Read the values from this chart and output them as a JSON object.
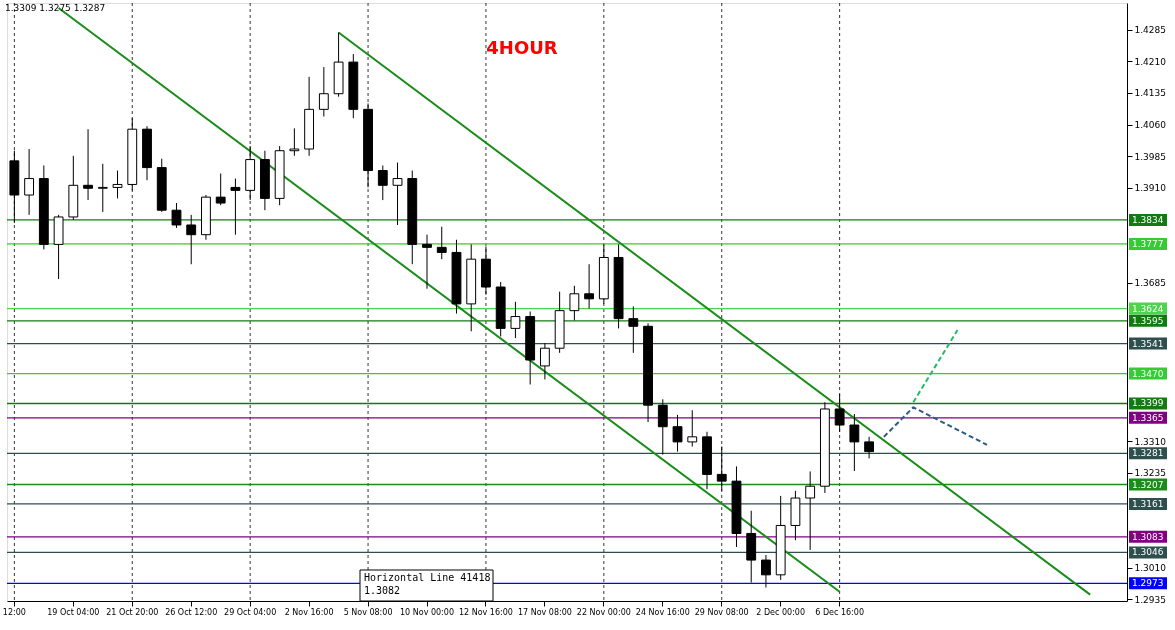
{
  "chart_data": {
    "type": "candlestick",
    "title": "4HOUR",
    "categories": [
      "12:00",
      null,
      null,
      null,
      "19 Oct 04:00",
      null,
      null,
      null,
      "21 Oct 20:00",
      null,
      null,
      null,
      "26 Oct 12:00",
      null,
      null,
      null,
      "29 Oct 04:00",
      null,
      null,
      null,
      "2 Nov 16:00",
      null,
      null,
      null,
      "5 Nov 08:00",
      null,
      null,
      null,
      "10 Nov 00:00",
      null,
      null,
      null,
      "12 Nov 16:00",
      null,
      null,
      null,
      "17 Nov 08:00",
      null,
      null,
      null,
      "22 Nov 00:00",
      null,
      null,
      null,
      "24 Nov 16:00",
      null,
      null,
      null,
      "29 Nov 08:00",
      null,
      null,
      null,
      "2 Dec 00:00",
      null,
      null,
      null,
      "6 Dec 16:00",
      null,
      null,
      null,
      null,
      null,
      null,
      null,
      null,
      null,
      null,
      null,
      null,
      null,
      null,
      null,
      null,
      null,
      null,
      null
    ],
    "ohlc": [
      [
        1.3974,
        1.3998,
        1.3827,
        1.3893
      ],
      [
        1.3893,
        1.4002,
        1.3846,
        1.3932
      ],
      [
        1.3932,
        1.3963,
        1.3764,
        1.3776
      ],
      [
        1.3776,
        1.3846,
        1.3694,
        1.3841
      ],
      [
        1.3841,
        1.3986,
        1.3834,
        1.3916
      ],
      [
        1.3916,
        1.4049,
        1.3881,
        1.3909
      ],
      [
        1.3909,
        1.3967,
        1.3853,
        1.3911
      ],
      [
        1.3911,
        1.3951,
        1.3885,
        1.3918
      ],
      [
        1.3918,
        1.4075,
        1.3904,
        1.4049
      ],
      [
        1.4049,
        1.4056,
        1.3928,
        1.3958
      ],
      [
        1.3958,
        1.3979,
        1.3853,
        1.3857
      ],
      [
        1.3857,
        1.3874,
        1.3815,
        1.3822
      ],
      [
        1.3822,
        1.3846,
        1.3729,
        1.3799
      ],
      [
        1.3799,
        1.3893,
        1.3787,
        1.3888
      ],
      [
        1.3888,
        1.3944,
        1.3869,
        1.3874
      ],
      [
        1.3911,
        1.3932,
        1.3799,
        1.3904
      ],
      [
        1.3904,
        1.4009,
        1.3881,
        1.3977
      ],
      [
        1.3977,
        1.3998,
        1.3857,
        1.3885
      ],
      [
        1.3885,
        1.4009,
        1.3869,
        1.3998
      ],
      [
        1.3998,
        1.4051,
        1.3986,
        1.4002
      ],
      [
        1.4002,
        1.4173,
        1.3986,
        1.4096
      ],
      [
        1.4096,
        1.4196,
        1.4079,
        1.4133
      ],
      [
        1.4133,
        1.4278,
        1.4126,
        1.4208
      ],
      [
        1.4208,
        1.4227,
        1.4075,
        1.4096
      ],
      [
        1.4096,
        1.411,
        1.3911,
        1.3951
      ],
      [
        1.3951,
        1.3963,
        1.3881,
        1.3916
      ],
      [
        1.3916,
        1.397,
        1.3822,
        1.3932
      ],
      [
        1.3932,
        1.3951,
        1.3729,
        1.3776
      ],
      [
        1.3776,
        1.3799,
        1.3671,
        1.3769
      ],
      [
        1.3769,
        1.3818,
        1.3741,
        1.3757
      ],
      [
        1.3757,
        1.3787,
        1.3612,
        1.3635
      ],
      [
        1.3635,
        1.3776,
        1.357,
        1.3741
      ],
      [
        1.3741,
        1.3771,
        1.3657,
        1.3675
      ],
      [
        1.3675,
        1.3687,
        1.3558,
        1.3577
      ],
      [
        1.3577,
        1.364,
        1.3554,
        1.3605
      ],
      [
        1.3605,
        1.3617,
        1.3444,
        1.3502
      ],
      [
        1.3488,
        1.3542,
        1.3456,
        1.353
      ],
      [
        1.353,
        1.3664,
        1.3519,
        1.3619
      ],
      [
        1.3619,
        1.3678,
        1.3596,
        1.3659
      ],
      [
        1.3659,
        1.3729,
        1.3624,
        1.3647
      ],
      [
        1.3647,
        1.3776,
        1.3635,
        1.3745
      ],
      [
        1.3745,
        1.3776,
        1.3577,
        1.36
      ],
      [
        1.36,
        1.3629,
        1.3519,
        1.3582
      ],
      [
        1.3582,
        1.3589,
        1.3355,
        1.3395
      ],
      [
        1.3395,
        1.3409,
        1.3278,
        1.3344
      ],
      [
        1.3344,
        1.3372,
        1.3285,
        1.3308
      ],
      [
        1.3308,
        1.3383,
        1.3297,
        1.332
      ],
      [
        1.332,
        1.3332,
        1.3196,
        1.3231
      ],
      [
        1.3231,
        1.3297,
        1.3192,
        1.3215
      ],
      [
        1.3215,
        1.325,
        1.3059,
        1.3091
      ],
      [
        1.3091,
        1.3145,
        1.2975,
        1.3028
      ],
      [
        1.3028,
        1.304,
        1.2963,
        1.2993
      ],
      [
        1.2993,
        1.318,
        1.2981,
        1.311
      ],
      [
        1.311,
        1.3192,
        1.3075,
        1.3175
      ],
      [
        1.3175,
        1.3238,
        1.3052,
        1.3203
      ],
      [
        1.3203,
        1.3402,
        1.3187,
        1.3386
      ],
      [
        1.3386,
        1.3421,
        1.3332,
        1.3348
      ],
      [
        1.3348,
        1.3374,
        1.3239,
        1.3308
      ],
      [
        1.3308,
        1.332,
        1.3269,
        1.3285
      ],
      null,
      null,
      null,
      null,
      null,
      null,
      null,
      null,
      null,
      null,
      null,
      null,
      null,
      null,
      null,
      null,
      null
    ],
    "series": [
      {
        "type": "line",
        "color": "#1a8c1a",
        "line_style": "solid",
        "values": [
          null,
          null,
          null,
          1.4336,
          null,
          null,
          null,
          null,
          null,
          null,
          null,
          null,
          null,
          null,
          null,
          null,
          null,
          null,
          null,
          null,
          null,
          null,
          null,
          null,
          null,
          null,
          null,
          null,
          null,
          null,
          null,
          null,
          null,
          null,
          null,
          null,
          null,
          null,
          null,
          null,
          null,
          null,
          null,
          null,
          null,
          null,
          null,
          null,
          null,
          null,
          null,
          null,
          null,
          null,
          null,
          null,
          1.2953,
          null,
          null,
          null,
          null,
          null,
          null,
          null,
          null,
          null,
          null,
          null,
          null,
          null,
          null,
          null,
          null,
          null,
          null,
          null
        ]
      },
      {
        "type": "line",
        "color": "#1a8c1a",
        "line_style": "solid",
        "values": [
          null,
          null,
          null,
          null,
          null,
          null,
          null,
          null,
          null,
          null,
          null,
          null,
          null,
          null,
          null,
          null,
          null,
          null,
          null,
          null,
          null,
          null,
          1.4278,
          null,
          null,
          null,
          null,
          null,
          null,
          null,
          null,
          null,
          null,
          null,
          null,
          null,
          null,
          null,
          null,
          null,
          null,
          null,
          null,
          null,
          null,
          null,
          null,
          null,
          null,
          null,
          null,
          null,
          null,
          null,
          null,
          null,
          null,
          null,
          null,
          null,
          null,
          null,
          null,
          null,
          null,
          null,
          null,
          null,
          null,
          null,
          null,
          null,
          null,
          1.2946,
          null,
          null
        ]
      },
      {
        "type": "line",
        "color": "#22bb66",
        "line_style": "dashed",
        "values": [
          null,
          null,
          null,
          null,
          null,
          null,
          null,
          null,
          null,
          null,
          null,
          null,
          null,
          null,
          null,
          null,
          null,
          null,
          null,
          null,
          null,
          null,
          null,
          null,
          null,
          null,
          null,
          null,
          null,
          null,
          null,
          null,
          null,
          null,
          null,
          null,
          null,
          null,
          null,
          null,
          null,
          null,
          null,
          null,
          null,
          null,
          null,
          null,
          null,
          null,
          null,
          null,
          null,
          null,
          null,
          null,
          null,
          null,
          null,
          null,
          null,
          1.3402,
          null,
          null,
          1.3573,
          null,
          null,
          null,
          null,
          null,
          null,
          null,
          null,
          null,
          null,
          null
        ]
      },
      {
        "type": "line",
        "color": "#2b5a8a",
        "line_style": "dashed",
        "values": [
          null,
          null,
          null,
          null,
          null,
          null,
          null,
          null,
          null,
          null,
          null,
          null,
          null,
          null,
          null,
          null,
          null,
          null,
          null,
          null,
          null,
          null,
          null,
          null,
          null,
          null,
          null,
          null,
          null,
          null,
          null,
          null,
          null,
          null,
          null,
          null,
          null,
          null,
          null,
          null,
          null,
          null,
          null,
          null,
          null,
          null,
          null,
          null,
          null,
          null,
          null,
          null,
          null,
          null,
          null,
          null,
          null,
          null,
          null,
          1.332,
          null,
          1.339,
          null,
          null,
          null,
          null,
          1.3301,
          null,
          null,
          null,
          null,
          null,
          null,
          null,
          null,
          null
        ]
      }
    ],
    "ylim": [
      1.2931,
      1.4348
    ],
    "yticks": [
      1.4285,
      {
        "value": 1.421,
        "label": "1.4210"
      },
      1.4135,
      {
        "value": 1.406,
        "label": "1.4060"
      },
      1.3985,
      {
        "value": 1.391,
        "label": "1.3910"
      },
      1.3685,
      {
        "value": 1.331,
        "label": "1.3310"
      },
      1.3235,
      {
        "value": 1.301,
        "label": "1.3010"
      },
      1.2935
    ],
    "grid": "x",
    "ref_lines": [
      {
        "axis": "y",
        "value": 1.3834,
        "label": "1.3834",
        "color": "#137a13"
      },
      {
        "axis": "y",
        "value": 1.3777,
        "label": "1.3777",
        "color": "#33cc33"
      },
      {
        "axis": "y",
        "value": 1.3624,
        "label": "1.3624",
        "color": "#4cd44c"
      },
      {
        "axis": "y",
        "value": 1.3595,
        "label": "1.3595",
        "color": "#137a13"
      },
      {
        "axis": "y",
        "value": 1.3541,
        "label": "1.3541",
        "color": "#2f4f4f"
      },
      {
        "axis": "y",
        "value": 1.347,
        "label": "1.3470",
        "color": "#33cc33"
      },
      {
        "axis": "y",
        "value": 1.3399,
        "label": "1.3399",
        "color": "#137a13"
      },
      {
        "axis": "y",
        "value": 1.3365,
        "label": "1.3365",
        "color": "#800080"
      },
      {
        "axis": "y",
        "value": 1.3281,
        "label": "1.3281",
        "color": "#2f4f4f"
      },
      {
        "axis": "y",
        "value": 1.3207,
        "label": "1.3207",
        "color": "#1a8c1a"
      },
      {
        "axis": "y",
        "value": 1.3161,
        "label": "1.3161",
        "color": "#2f4f4f"
      },
      {
        "axis": "y",
        "value": 1.3083,
        "label": "1.3083",
        "color": "#800080"
      },
      {
        "axis": "y",
        "value": 1.3046,
        "label": "1.3046",
        "color": "#2f4f4f"
      },
      {
        "axis": "y",
        "value": 1.2973,
        "label": "1.2973",
        "color": "#0000ff"
      }
    ],
    "annotations": [
      "1.3309 1.3275 1.3287",
      "Horizontal Line 41418\n1.3082"
    ]
  }
}
